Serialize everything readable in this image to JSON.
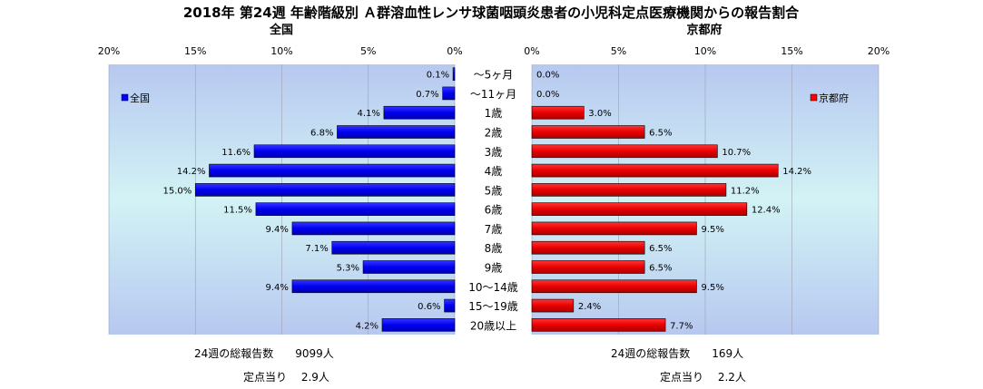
{
  "chart_data": {
    "type": "bar",
    "title": "2018年 第24週 年齢階級別 Ａ群溶血性レンサ球菌咽頭炎患者の小児科定点医療機関からの報告割合",
    "categories": [
      "～5ヶ月",
      "～11ヶ月",
      "1歳",
      "2歳",
      "3歳",
      "4歳",
      "5歳",
      "6歳",
      "7歳",
      "8歳",
      "9歳",
      "10～14歳",
      "15～19歳",
      "20歳以上"
    ],
    "series": [
      {
        "name": "全国",
        "subtitle": "全国",
        "color": "#0000ff",
        "values": [
          0.1,
          0.7,
          4.1,
          6.8,
          11.6,
          14.2,
          15.0,
          11.5,
          9.4,
          7.1,
          5.3,
          9.4,
          0.6,
          4.2
        ],
        "labels": [
          "0.1%",
          "0.7%",
          "4.1%",
          "6.8%",
          "11.6%",
          "14.2%",
          "15.0%",
          "11.5%",
          "9.4%",
          "7.1%",
          "5.3%",
          "9.4%",
          "0.6%",
          "4.2%"
        ],
        "xticks": [
          "20%",
          "15%",
          "10%",
          "5%",
          "0%"
        ]
      },
      {
        "name": "京都府",
        "subtitle": "京都府",
        "color": "#ff0000",
        "values": [
          0.0,
          0.0,
          3.0,
          6.5,
          10.7,
          14.2,
          11.2,
          12.4,
          9.5,
          6.5,
          6.5,
          9.5,
          2.4,
          7.7
        ],
        "labels": [
          "0.0%",
          "0.0%",
          "3.0%",
          "6.5%",
          "10.7%",
          "14.2%",
          "11.2%",
          "12.4%",
          "9.5%",
          "6.5%",
          "6.5%",
          "9.5%",
          "2.4%",
          "7.7%"
        ],
        "xticks": [
          "0%",
          "5%",
          "10%",
          "15%",
          "20%"
        ]
      }
    ],
    "xlim": [
      0,
      20
    ],
    "xunit": "%"
  },
  "footer": {
    "national": {
      "total": "24週の総報告数　　9099人",
      "per_site": "定点当り　 2.9人"
    },
    "kyoto": {
      "total": "24週の総報告数　　169人",
      "per_site": "定点当り　 2.2人"
    }
  }
}
